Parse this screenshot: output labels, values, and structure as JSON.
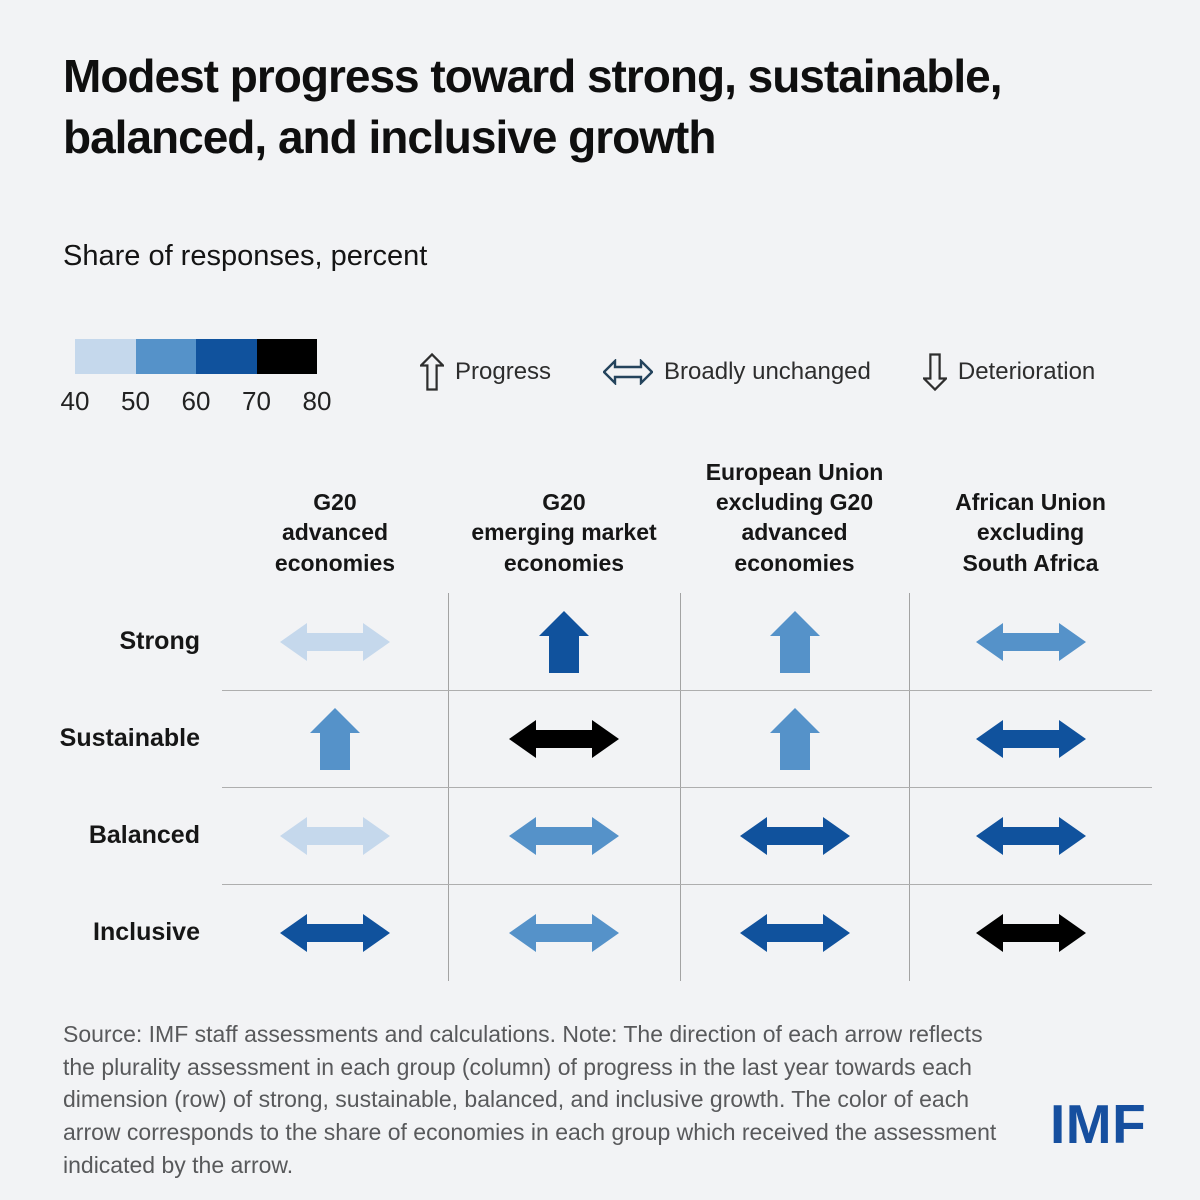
{
  "title": {
    "line1": "Modest progress toward strong, sustainable,",
    "line2": "balanced, and inclusive growth"
  },
  "subtitle": "Share of responses, percent",
  "color_scale": {
    "ticks": [
      "40",
      "50",
      "60",
      "70",
      "80"
    ],
    "segments": [
      {
        "range": "40-50",
        "color": "#c5d8ec"
      },
      {
        "range": "50-60",
        "color": "#5592c9"
      },
      {
        "range": "60-70",
        "color": "#10529d"
      },
      {
        "range": "70-80",
        "color": "#000000"
      }
    ]
  },
  "direction_legend": [
    {
      "icon": "up-arrow-icon",
      "label": "Progress",
      "outline_color": "#2e2e2e"
    },
    {
      "icon": "left-right-arrow-icon",
      "label": "Broadly unchanged",
      "outline_color": "#24435c"
    },
    {
      "icon": "down-arrow-icon",
      "label": "Deterioration",
      "outline_color": "#2e2e2e"
    }
  ],
  "chart_data": {
    "type": "heatmap",
    "title": "Modest progress toward strong, sustainable, balanced, and inclusive growth",
    "unit": "Share of responses, percent",
    "legend_position": "top",
    "columns": [
      {
        "lines": [
          "G20",
          "advanced",
          "economies"
        ]
      },
      {
        "lines": [
          "G20",
          "emerging market",
          "economies"
        ]
      },
      {
        "lines": [
          "European Union",
          "excluding G20",
          "advanced",
          "economies"
        ]
      },
      {
        "lines": [
          "African Union",
          "excluding",
          "South Africa"
        ]
      }
    ],
    "rows": [
      "Strong",
      "Sustainable",
      "Balanced",
      "Inclusive"
    ],
    "cells": [
      [
        {
          "direction": "unchanged",
          "share": "40-50"
        },
        {
          "direction": "up",
          "share": "60-70"
        },
        {
          "direction": "up",
          "share": "50-60"
        },
        {
          "direction": "unchanged",
          "share": "50-60"
        }
      ],
      [
        {
          "direction": "up",
          "share": "50-60"
        },
        {
          "direction": "unchanged",
          "share": "70-80"
        },
        {
          "direction": "up",
          "share": "50-60"
        },
        {
          "direction": "unchanged",
          "share": "60-70"
        }
      ],
      [
        {
          "direction": "unchanged",
          "share": "40-50"
        },
        {
          "direction": "unchanged",
          "share": "50-60"
        },
        {
          "direction": "unchanged",
          "share": "60-70"
        },
        {
          "direction": "unchanged",
          "share": "60-70"
        }
      ],
      [
        {
          "direction": "unchanged",
          "share": "60-70"
        },
        {
          "direction": "unchanged",
          "share": "50-60"
        },
        {
          "direction": "unchanged",
          "share": "60-70"
        },
        {
          "direction": "unchanged",
          "share": "70-80"
        }
      ]
    ]
  },
  "source_note": "Source: IMF staff assessments and calculations. Note: The direction of each arrow reflects the plurality assessment in each group (column) of progress in the last year towards each dimension (row) of strong, sustainable, balanced, and inclusive growth. The color of each arrow corresponds to the share of economies in each group which received the assessment indicated by the arrow.",
  "logo_text": "IMF"
}
